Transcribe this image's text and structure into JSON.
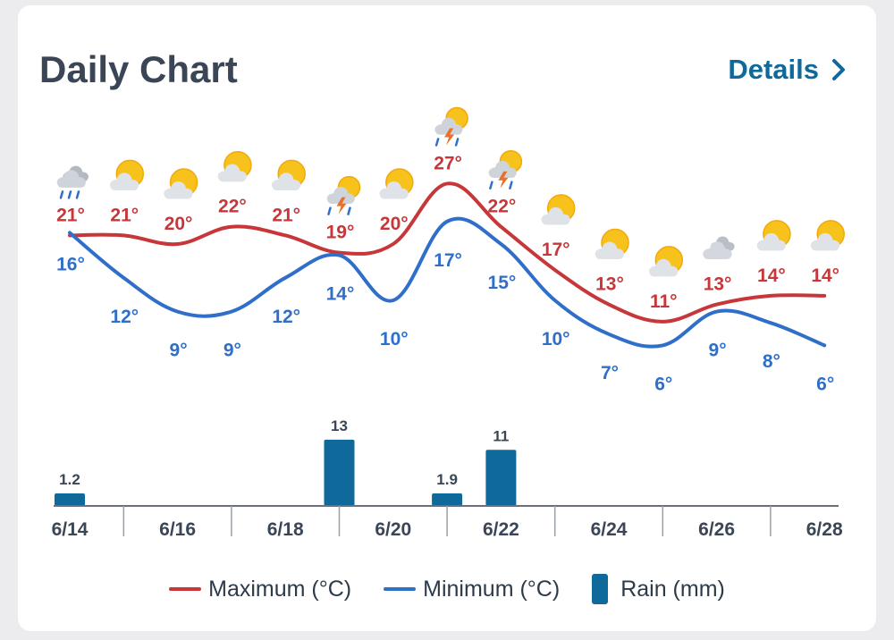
{
  "header": {
    "title": "Daily Chart",
    "details_label": "Details",
    "details_icon": "chevron-right-icon"
  },
  "colors": {
    "max": "#c7373a",
    "min": "#2f6fc9",
    "rain": "#0f6a9b",
    "axis": "#6a6f78",
    "label": "#3a4656"
  },
  "chart_data": {
    "type": "line",
    "x": [
      "6/14",
      "6/15",
      "6/16",
      "6/17",
      "6/18",
      "6/19",
      "6/20",
      "6/21",
      "6/22",
      "6/23",
      "6/24",
      "6/25",
      "6/26",
      "6/27",
      "6/28"
    ],
    "x_tick_labels": [
      "6/14",
      "6/16",
      "6/18",
      "6/20",
      "6/22",
      "6/24",
      "6/26",
      "6/28"
    ],
    "series": [
      {
        "name": "Maximum (°C)",
        "kind": "line",
        "values": [
          21,
          21,
          20,
          22,
          21,
          19,
          20,
          27,
          22,
          17,
          13,
          11,
          13,
          14,
          14
        ]
      },
      {
        "name": "Minimum (°C)",
        "kind": "line",
        "values": [
          16,
          12,
          9,
          9,
          12,
          14,
          10,
          17,
          15,
          10,
          7,
          6,
          9,
          8,
          6
        ]
      },
      {
        "name": "Rain (mm)",
        "kind": "bar",
        "values": [
          1.2,
          null,
          null,
          null,
          null,
          13,
          null,
          1.9,
          11,
          null,
          null,
          null,
          null,
          null,
          null
        ]
      }
    ],
    "value_suffix": "°",
    "weather_icons": [
      "rain",
      "partly-sunny",
      "partly-sunny",
      "partly-sunny",
      "partly-sunny",
      "thunderstorm",
      "partly-sunny",
      "thunderstorm",
      "thunderstorm",
      "partly-sunny",
      "partly-sunny",
      "partly-sunny",
      "cloudy",
      "partly-sunny",
      "partly-sunny"
    ],
    "grid": false,
    "legend_position": "bottom"
  },
  "legend": {
    "items": [
      {
        "label": "Maximum (°C)",
        "type": "line",
        "color": "#c7373a"
      },
      {
        "label": "Minimum (°C)",
        "type": "line",
        "color": "#2f6fc9"
      },
      {
        "label": "Rain (mm)",
        "type": "bar",
        "color": "#0f6a9b"
      }
    ]
  }
}
